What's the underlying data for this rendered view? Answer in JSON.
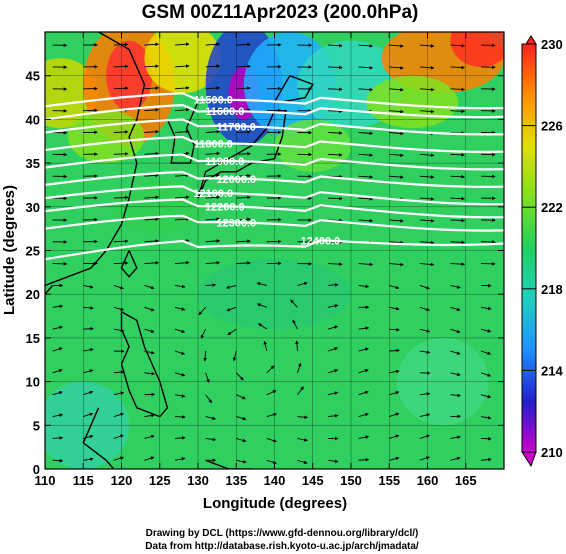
{
  "chart_data": {
    "type": "heatmap",
    "title": "GSM 00Z11Apr2023 (200.0hPa)",
    "xlabel": "Longitude (degrees)",
    "ylabel": "Latitude  (degrees)",
    "xlim": [
      110,
      170
    ],
    "ylim": [
      0,
      50
    ],
    "x_ticks": [
      "110",
      "115",
      "120",
      "125",
      "130",
      "135",
      "140",
      "145",
      "150",
      "155",
      "160",
      "165"
    ],
    "y_ticks": [
      "0",
      "5",
      "10",
      "15",
      "20",
      "25",
      "30",
      "35",
      "40",
      "45"
    ],
    "colorbar": {
      "min": 210,
      "max": 230,
      "tick_labels": [
        "210",
        "214",
        "218",
        "222",
        "226",
        "230"
      ],
      "extend": "both",
      "colors": [
        "#cc00cc",
        "#2020cc",
        "#2090ff",
        "#20d0c0",
        "#20d060",
        "#80e020",
        "#e0e000",
        "#ff9000",
        "#ff2020"
      ]
    },
    "height_contours": [
      {
        "label": "11500.0",
        "lat_at_110": 41.5,
        "lat_at_170": 42.5
      },
      {
        "label": "11600.0",
        "lat_at_110": 40.0,
        "lat_at_170": 41.5
      },
      {
        "label": "11700.0",
        "lat_at_110": 38.5,
        "lat_at_170": 39.5
      },
      {
        "label": "11800.0",
        "lat_at_110": 36.5,
        "lat_at_170": 37.5
      },
      {
        "label": "11900.0",
        "lat_at_110": 34.5,
        "lat_at_170": 35.5
      },
      {
        "label": "12000.0",
        "lat_at_110": 32.5,
        "lat_at_170": 33.5
      },
      {
        "label": "12100.0",
        "lat_at_110": 31.0,
        "lat_at_170": 31.5
      },
      {
        "label": "12200.0",
        "lat_at_110": 29.5,
        "lat_at_170": 30.0
      },
      {
        "label": "12300.0",
        "lat_at_110": 27.5,
        "lat_at_170": 28.5
      },
      {
        "label": "12400.0",
        "lat_at_110": 24.0,
        "lat_at_170": 27.0
      }
    ],
    "wind_field": "westerly jet 25-45N, weak anticyclonic circulation near 137E 13N",
    "grid": true
  },
  "credits": {
    "line1": "Drawing by DCL (https://www.gfd-dennou.org/library/dcl/)",
    "line2": "Data from http://database.rish.kyoto-u.ac.jp/arch/jmadata/"
  }
}
